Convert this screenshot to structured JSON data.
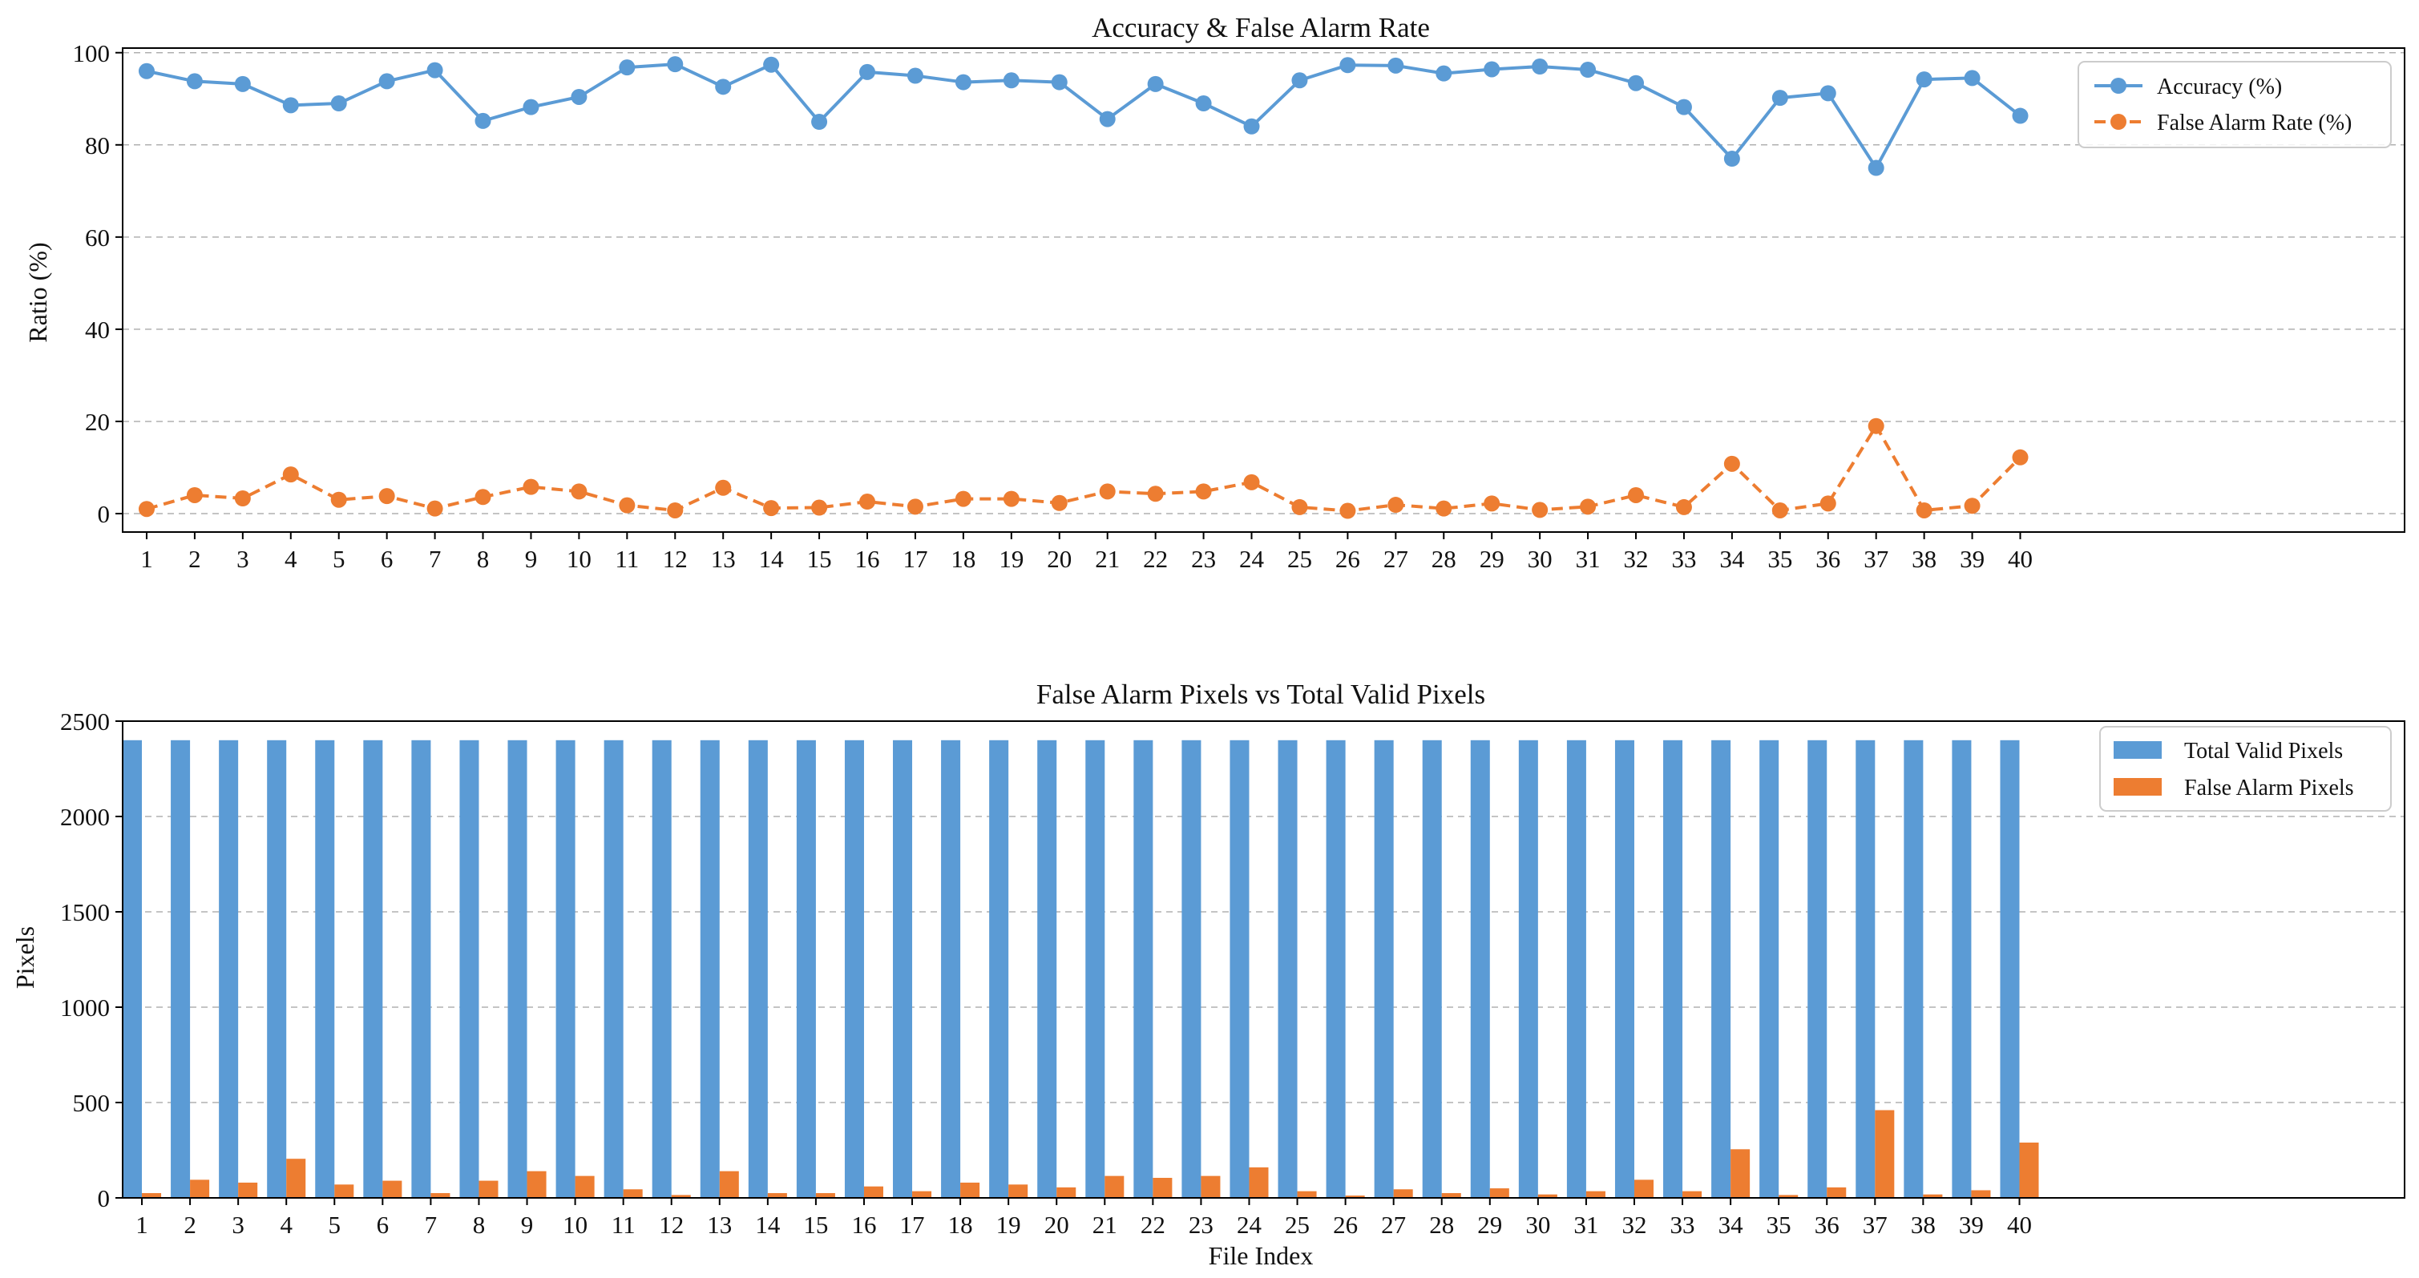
{
  "figure": {
    "title_top": "Accuracy & False Alarm Rate",
    "title_bottom": "False Alarm Pixels vs Total Valid Pixels"
  },
  "colors": {
    "accuracy": "#5b9bd5",
    "false_alarm": "#ed7d31",
    "grid": "#b0b0b0",
    "axis": "#000000"
  },
  "chart_data": [
    {
      "type": "line",
      "title": "Accuracy & False Alarm Rate",
      "xlabel": "",
      "ylabel": "Ratio (%)",
      "x": [
        1,
        2,
        3,
        4,
        5,
        6,
        7,
        8,
        9,
        10,
        11,
        12,
        13,
        14,
        15,
        16,
        17,
        18,
        19,
        20,
        21,
        22,
        23,
        24,
        25,
        26,
        27,
        28,
        29,
        30,
        31,
        32,
        33,
        34,
        35,
        36,
        37,
        38,
        39,
        40
      ],
      "xlim": [
        0.5,
        48
      ],
      "ylim": [
        -4,
        101
      ],
      "yticks": [
        0,
        20,
        40,
        60,
        80,
        100
      ],
      "grid": "y-dashed",
      "legend": "top-right",
      "series": [
        {
          "name": "Accuracy (%)",
          "style": "solid-circle",
          "color": "#5b9bd5",
          "values": [
            96.0,
            93.8,
            93.2,
            88.6,
            89.0,
            93.8,
            96.2,
            85.2,
            88.2,
            90.4,
            96.8,
            97.5,
            92.6,
            97.4,
            85.0,
            95.8,
            95.0,
            93.6,
            94.0,
            93.6,
            85.6,
            93.2,
            89.0,
            84.0,
            94.0,
            97.3,
            97.2,
            95.5,
            96.4,
            97.0,
            96.3,
            93.4,
            88.2,
            77.0,
            90.2,
            91.2,
            75.0,
            94.2,
            94.5,
            86.3
          ]
        },
        {
          "name": "False Alarm Rate (%)",
          "style": "dashed-circle",
          "color": "#ed7d31",
          "values": [
            1.0,
            4.0,
            3.3,
            8.5,
            3.0,
            3.8,
            1.1,
            3.6,
            5.8,
            4.8,
            1.8,
            0.7,
            5.6,
            1.2,
            1.3,
            2.6,
            1.5,
            3.2,
            3.2,
            2.3,
            4.8,
            4.3,
            4.8,
            6.8,
            1.4,
            0.6,
            1.9,
            1.1,
            2.2,
            0.8,
            1.5,
            4.0,
            1.4,
            10.8,
            0.7,
            2.2,
            19.0,
            0.7,
            1.7,
            12.2
          ]
        }
      ]
    },
    {
      "type": "bar",
      "title": "False Alarm Pixels vs Total Valid Pixels",
      "xlabel": "File Index",
      "ylabel": "Pixels",
      "categories": [
        "1",
        "2",
        "3",
        "4",
        "5",
        "6",
        "7",
        "8",
        "9",
        "10",
        "11",
        "12",
        "13",
        "14",
        "15",
        "16",
        "17",
        "18",
        "19",
        "20",
        "21",
        "22",
        "23",
        "24",
        "25",
        "26",
        "27",
        "28",
        "29",
        "30",
        "31",
        "32",
        "33",
        "34",
        "35",
        "36",
        "37",
        "38",
        "39",
        "40"
      ],
      "xlim": [
        0.6,
        48
      ],
      "ylim": [
        0,
        2500
      ],
      "yticks": [
        0,
        500,
        1000,
        1500,
        2000,
        2500
      ],
      "grid": "y-dashed",
      "legend": "top-right",
      "series": [
        {
          "name": "Total Valid Pixels",
          "color": "#5b9bd5",
          "values": [
            2400,
            2400,
            2400,
            2400,
            2400,
            2400,
            2400,
            2400,
            2400,
            2400,
            2400,
            2400,
            2400,
            2400,
            2400,
            2400,
            2400,
            2400,
            2400,
            2400,
            2400,
            2400,
            2400,
            2400,
            2400,
            2400,
            2400,
            2400,
            2400,
            2400,
            2400,
            2400,
            2400,
            2400,
            2400,
            2400,
            2400,
            2400,
            2400,
            2400
          ]
        },
        {
          "name": "False Alarm Pixels",
          "color": "#ed7d31",
          "values": [
            25,
            95,
            80,
            205,
            70,
            90,
            25,
            90,
            140,
            115,
            45,
            15,
            140,
            25,
            25,
            60,
            35,
            80,
            70,
            55,
            115,
            105,
            115,
            160,
            35,
            12,
            45,
            25,
            50,
            18,
            35,
            95,
            35,
            255,
            15,
            55,
            460,
            18,
            40,
            290
          ]
        }
      ]
    }
  ]
}
